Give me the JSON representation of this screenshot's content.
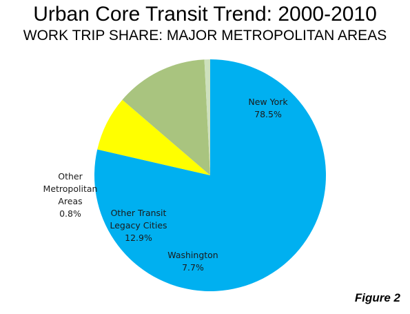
{
  "title": "Urban Core Transit Trend: 2000-2010",
  "subtitle": "WORK TRIP SHARE: MAJOR METROPOLITAN AREAS",
  "figure_label": "Figure 2",
  "colors": {
    "new_york": "#00b0f0",
    "washington": "#ffff00",
    "other_transit_legacy": "#a9c47f",
    "other_metropolitan": "#cde0bd",
    "background": "#ffffff"
  },
  "chart_data": {
    "type": "pie",
    "title": "Urban Core Transit Trend: 2000-2010",
    "subtitle": "WORK TRIP SHARE: MAJOR METROPOLITAN AREAS",
    "start": "12 o'clock, clockwise",
    "slices": [
      {
        "key": "new_york",
        "label_lines": [
          "New York",
          "78.5%"
        ],
        "value": 78.5,
        "color": "#00b0f0"
      },
      {
        "key": "washington",
        "label_lines": [
          "Washington",
          "7.7%"
        ],
        "value": 7.7,
        "color": "#ffff00"
      },
      {
        "key": "other_transit_legacy",
        "label_lines": [
          "Other Transit",
          "Legacy Cities",
          "12.9%"
        ],
        "value": 12.9,
        "color": "#a9c47f"
      },
      {
        "key": "other_metropolitan",
        "label_lines": [
          "Other",
          "Metropolitan",
          "Areas",
          "0.8%"
        ],
        "value": 0.8,
        "color": "#cde0bd"
      }
    ]
  }
}
